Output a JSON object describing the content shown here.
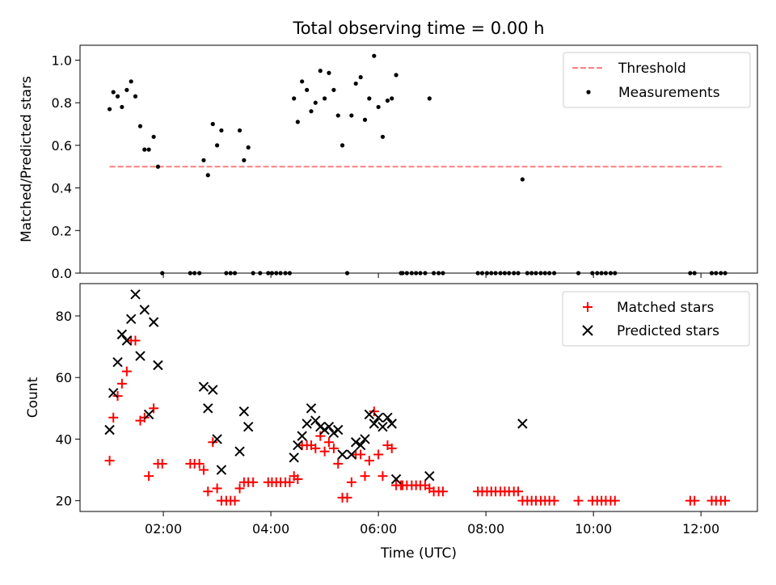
{
  "title": "Total observing time = 0.00 h",
  "chart_data": [
    {
      "type": "scatter",
      "panel": "top",
      "ylabel": "Matched/Predicted stars",
      "xlabel": "",
      "ylim": [
        0,
        1.07
      ],
      "yticks": [
        0.0,
        0.2,
        0.4,
        0.6,
        0.8,
        1.0
      ],
      "ytick_labels": [
        "0.0",
        "0.2",
        "0.4",
        "0.6",
        "0.8",
        "1.0"
      ],
      "xlim_hours": [
        0.45,
        13.05
      ],
      "xticks_hours": [
        2,
        4,
        6,
        8,
        10,
        12
      ],
      "legend": {
        "placement": "upper right",
        "entries": [
          {
            "label": "Threshold",
            "marker": "dashed-line",
            "color": "#ff7f7f"
          },
          {
            "label": "Measurements",
            "marker": "dot",
            "color": "#000000"
          }
        ]
      },
      "threshold": {
        "name": "Threshold",
        "y": 0.5,
        "x_range_hours": [
          1.0,
          12.4
        ],
        "color": "#ff7f7f"
      },
      "series": [
        {
          "name": "Measurements",
          "color": "#000000",
          "x_hours": [
            1.0,
            1.07,
            1.15,
            1.23,
            1.32,
            1.4,
            1.48,
            1.57,
            1.65,
            1.73,
            1.82,
            1.9,
            1.98,
            2.5,
            2.58,
            2.67,
            2.75,
            2.83,
            2.92,
            3.0,
            3.08,
            3.17,
            3.25,
            3.33,
            3.42,
            3.5,
            3.58,
            3.67,
            3.8,
            3.95,
            4.02,
            4.1,
            4.18,
            4.27,
            4.35,
            4.43,
            4.5,
            4.58,
            4.67,
            4.75,
            4.83,
            4.92,
            5.0,
            5.08,
            5.17,
            5.25,
            5.33,
            5.42,
            5.5,
            5.58,
            5.67,
            5.75,
            5.83,
            5.92,
            6.0,
            6.08,
            6.17,
            6.25,
            6.33,
            6.42,
            6.45,
            6.53,
            6.62,
            6.7,
            6.78,
            6.87,
            6.95,
            7.03,
            7.12,
            7.2,
            7.85,
            7.93,
            8.02,
            8.1,
            8.18,
            8.27,
            8.35,
            8.43,
            8.52,
            8.6,
            8.68,
            8.77,
            8.85,
            8.93,
            9.02,
            9.1,
            9.18,
            9.27,
            9.72,
            9.98,
            10.07,
            10.15,
            10.23,
            10.32,
            10.4,
            11.8,
            11.88,
            12.2,
            12.28,
            12.37,
            12.45
          ],
          "y": [
            0.77,
            0.85,
            0.83,
            0.78,
            0.86,
            0.9,
            0.83,
            0.69,
            0.58,
            0.58,
            0.64,
            0.5,
            0.0,
            0.0,
            0.0,
            0.0,
            0.53,
            0.46,
            0.7,
            0.6,
            0.67,
            0.0,
            0.0,
            0.0,
            0.67,
            0.53,
            0.59,
            0.0,
            0.0,
            0.0,
            0.0,
            0.0,
            0.0,
            0.0,
            0.0,
            0.82,
            0.71,
            0.9,
            0.86,
            0.76,
            0.8,
            0.95,
            0.82,
            0.94,
            0.86,
            0.74,
            0.6,
            0.0,
            0.74,
            0.89,
            0.92,
            0.72,
            0.82,
            1.02,
            0.78,
            0.64,
            0.81,
            0.82,
            0.93,
            0.0,
            0.0,
            0.0,
            0.0,
            0.0,
            0.0,
            0.0,
            0.82,
            0.0,
            0.0,
            0.0,
            0.0,
            0.0,
            0.0,
            0.0,
            0.0,
            0.0,
            0.0,
            0.0,
            0.0,
            0.0,
            0.44,
            0.0,
            0.0,
            0.0,
            0.0,
            0.0,
            0.0,
            0.0,
            0.0,
            0.0,
            0.0,
            0.0,
            0.0,
            0.0,
            0.0,
            0.0,
            0.0,
            0.0,
            0.0,
            0.0,
            0.0
          ]
        }
      ]
    },
    {
      "type": "scatter",
      "panel": "bottom",
      "ylabel": "Count",
      "xlabel": "Time (UTC)",
      "ylim": [
        16.5,
        90.5
      ],
      "yticks": [
        20,
        40,
        60,
        80
      ],
      "ytick_labels": [
        "20",
        "40",
        "60",
        "80"
      ],
      "xlim_hours": [
        0.45,
        13.05
      ],
      "xticks_hours": [
        2,
        4,
        6,
        8,
        10,
        12
      ],
      "xtick_labels": [
        "02:00",
        "04:00",
        "06:00",
        "08:00",
        "10:00",
        "12:00"
      ],
      "legend": {
        "placement": "upper right",
        "entries": [
          {
            "label": "Matched stars",
            "marker": "plus",
            "color": "#ff0000"
          },
          {
            "label": "Predicted stars",
            "marker": "x",
            "color": "#000000"
          }
        ]
      },
      "series": [
        {
          "name": "Matched stars",
          "color": "#ff0000",
          "x_hours": [
            1.0,
            1.07,
            1.15,
            1.23,
            1.32,
            1.4,
            1.48,
            1.57,
            1.65,
            1.73,
            1.82,
            1.9,
            1.98,
            2.5,
            2.58,
            2.67,
            2.75,
            2.83,
            2.92,
            3.0,
            3.08,
            3.17,
            3.25,
            3.33,
            3.42,
            3.5,
            3.58,
            3.67,
            3.95,
            4.02,
            4.1,
            4.18,
            4.27,
            4.35,
            4.43,
            4.5,
            4.58,
            4.67,
            4.75,
            4.83,
            4.92,
            5.0,
            5.08,
            5.17,
            5.25,
            5.33,
            5.42,
            5.5,
            5.58,
            5.67,
            5.75,
            5.83,
            5.92,
            6.0,
            6.08,
            6.17,
            6.25,
            6.33,
            6.42,
            6.45,
            6.53,
            6.62,
            6.7,
            6.78,
            6.87,
            6.95,
            7.03,
            7.12,
            7.2,
            7.85,
            7.93,
            8.02,
            8.1,
            8.18,
            8.27,
            8.35,
            8.43,
            8.52,
            8.6,
            8.68,
            8.77,
            8.85,
            8.93,
            9.02,
            9.1,
            9.18,
            9.27,
            9.72,
            9.98,
            10.07,
            10.15,
            10.23,
            10.32,
            10.4,
            11.8,
            11.88,
            12.2,
            12.28,
            12.37,
            12.45
          ],
          "y": [
            33,
            47,
            54,
            58,
            62,
            72,
            72,
            46,
            47,
            28,
            50,
            32,
            32,
            32,
            32,
            32,
            30,
            23,
            39,
            24,
            20,
            20,
            20,
            20,
            24,
            26,
            26,
            26,
            26,
            26,
            26,
            26,
            26,
            26,
            28,
            27,
            38,
            38,
            38,
            37,
            41,
            36,
            39,
            37,
            32,
            21,
            21,
            26,
            35,
            35,
            28,
            33,
            49,
            35,
            28,
            38,
            37,
            25,
            25,
            25,
            25,
            25,
            25,
            25,
            25,
            24,
            23,
            23,
            23,
            23,
            23,
            23,
            23,
            23,
            23,
            23,
            23,
            23,
            23,
            20,
            20,
            20,
            20,
            20,
            20,
            20,
            20,
            20,
            20,
            20,
            20,
            20,
            20,
            20,
            20,
            20,
            20,
            20,
            20,
            20
          ]
        },
        {
          "name": "Predicted stars",
          "color": "#000000",
          "x_hours": [
            1.0,
            1.07,
            1.15,
            1.23,
            1.32,
            1.4,
            1.48,
            1.57,
            1.65,
            1.73,
            1.82,
            1.9,
            1.98,
            2.75,
            2.83,
            2.92,
            3.0,
            3.08,
            3.42,
            3.5,
            3.58,
            4.43,
            4.5,
            4.58,
            4.67,
            4.75,
            4.83,
            4.92,
            5.0,
            5.08,
            5.17,
            5.25,
            5.33,
            5.5,
            5.58,
            5.67,
            5.75,
            5.83,
            5.92,
            6.0,
            6.08,
            6.17,
            6.25,
            6.33,
            6.95,
            8.68
          ],
          "y": [
            43,
            55,
            65,
            74,
            72,
            79,
            87,
            67,
            82,
            48,
            78,
            64,
            null,
            57,
            50,
            56,
            40,
            30,
            36,
            49,
            44,
            34,
            38,
            41,
            45,
            50,
            46,
            44,
            43,
            44,
            42,
            43,
            35,
            35,
            39,
            38,
            40,
            48,
            45,
            47,
            44,
            47,
            45,
            27,
            28,
            45
          ]
        }
      ]
    }
  ]
}
